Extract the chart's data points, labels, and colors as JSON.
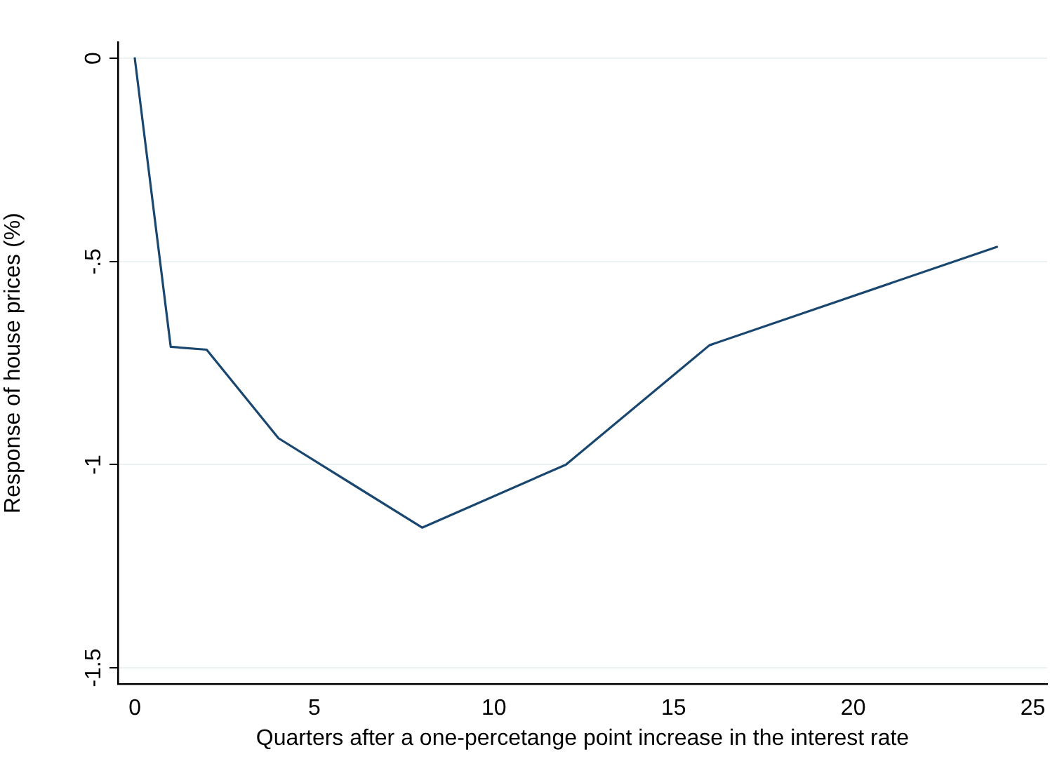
{
  "chart_data": {
    "type": "line",
    "xlabel": "Quarters after a one-percetange point increase in the interest rate",
    "ylabel": "Response of house prices (%)",
    "x": [
      0,
      1,
      2,
      4,
      8,
      12,
      16,
      24
    ],
    "series": [
      {
        "color": "#1a476f",
        "values": [
          0,
          -0.71,
          -0.717,
          -0.935,
          -1.155,
          -1.0,
          -0.706,
          -0.464
        ]
      }
    ],
    "xlim": [
      -0.47,
      25.4
    ],
    "xticks": [
      0,
      5,
      10,
      15,
      20,
      25
    ],
    "ylim": [
      -1.54,
      0.04
    ],
    "yticks": [
      0,
      {
        "value": -0.5,
        "label": "-.5"
      },
      -1,
      {
        "value": -1.5,
        "label": "-1.5"
      }
    ],
    "grid": "y",
    "legend": false,
    "marker": "none",
    "line_style": "solid"
  }
}
